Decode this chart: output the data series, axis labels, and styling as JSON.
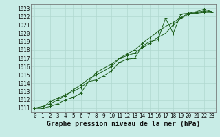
{
  "title": "Graphe pression niveau de la mer (hPa)",
  "bg_color": "#c8ece6",
  "grid_color": "#b0d8d0",
  "line_color": "#1a5c18",
  "marker_color": "#1a5c18",
  "xlim": [
    -0.5,
    23.5
  ],
  "ylim": [
    1010.5,
    1023.5
  ],
  "xticks": [
    0,
    1,
    2,
    3,
    4,
    5,
    6,
    7,
    8,
    9,
    10,
    11,
    12,
    13,
    14,
    15,
    16,
    17,
    18,
    19,
    20,
    21,
    22,
    23
  ],
  "yticks": [
    1011,
    1012,
    1013,
    1014,
    1015,
    1016,
    1017,
    1018,
    1019,
    1020,
    1021,
    1022,
    1023
  ],
  "line1": [
    1011.0,
    1011.0,
    1011.2,
    1011.5,
    1012.0,
    1012.3,
    1012.8,
    1014.2,
    1014.4,
    1014.9,
    1015.5,
    1016.5,
    1016.9,
    1017.0,
    1018.5,
    1019.0,
    1019.2,
    1021.8,
    1020.0,
    1022.3,
    1022.4,
    1022.4,
    1022.5,
    1022.5
  ],
  "line2": [
    1011.0,
    1011.0,
    1011.8,
    1012.2,
    1012.6,
    1013.0,
    1013.5,
    1014.2,
    1015.3,
    1015.8,
    1016.3,
    1017.0,
    1017.3,
    1017.6,
    1018.3,
    1018.8,
    1019.5,
    1020.0,
    1021.0,
    1021.8,
    1022.3,
    1022.5,
    1022.7,
    1022.6
  ],
  "line3": [
    1011.0,
    1011.2,
    1011.5,
    1012.0,
    1012.5,
    1013.2,
    1013.8,
    1014.5,
    1015.0,
    1015.5,
    1016.0,
    1017.0,
    1017.5,
    1018.0,
    1018.8,
    1019.5,
    1020.2,
    1020.8,
    1021.3,
    1021.9,
    1022.4,
    1022.6,
    1022.9,
    1022.6
  ],
  "title_fontsize": 7,
  "tick_fontsize": 5.5
}
